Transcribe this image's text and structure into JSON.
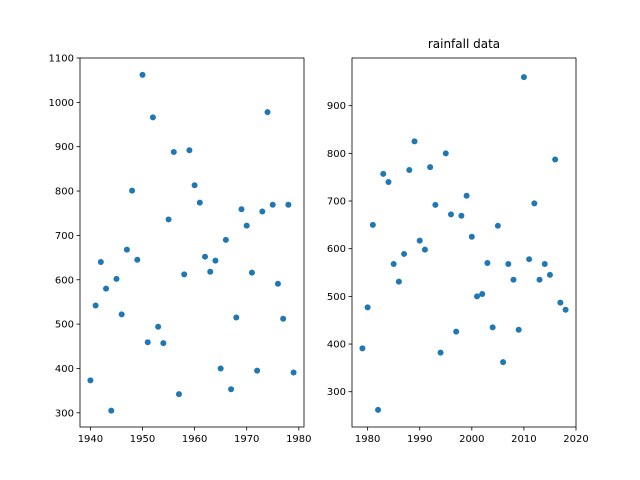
{
  "chart_data": [
    {
      "type": "scatter",
      "title": "",
      "xlabel": "",
      "ylabel": "",
      "xlim": [
        1938,
        1981
      ],
      "ylim": [
        268,
        1100
      ],
      "xticks": [
        1940,
        1950,
        1960,
        1970,
        1980
      ],
      "yticks": [
        300,
        400,
        500,
        600,
        700,
        800,
        900,
        1000,
        1100
      ],
      "grid": false,
      "marker_color": "#1f77b4",
      "x": [
        1940,
        1941,
        1942,
        1943,
        1944,
        1945,
        1946,
        1947,
        1948,
        1949,
        1950,
        1951,
        1952,
        1953,
        1954,
        1955,
        1956,
        1957,
        1958,
        1959,
        1960,
        1961,
        1962,
        1963,
        1964,
        1965,
        1966,
        1967,
        1968,
        1969,
        1970,
        1971,
        1972,
        1973,
        1974,
        1975,
        1976,
        1977,
        1978,
        1979
      ],
      "y": [
        373,
        542,
        640,
        580,
        305,
        602,
        522,
        668,
        801,
        645,
        1062,
        459,
        966,
        494,
        457,
        736,
        888,
        342,
        612,
        892,
        813,
        774,
        652,
        618,
        643,
        400,
        690,
        353,
        515,
        759,
        722,
        616,
        395,
        754,
        978,
        769,
        591,
        512,
        769,
        391
      ]
    },
    {
      "type": "scatter",
      "title": "rainfall data",
      "xlabel": "",
      "ylabel": "",
      "xlim": [
        1977,
        2020
      ],
      "ylim": [
        226,
        1000
      ],
      "xticks": [
        1980,
        1990,
        2000,
        2010,
        2020
      ],
      "yticks": [
        300,
        400,
        500,
        600,
        700,
        800,
        900
      ],
      "grid": false,
      "marker_color": "#1f77b4",
      "x": [
        1979,
        1980,
        1981,
        1982,
        1983,
        1984,
        1985,
        1986,
        1987,
        1988,
        1989,
        1990,
        1991,
        1992,
        1993,
        1994,
        1995,
        1996,
        1997,
        1998,
        1999,
        2000,
        2001,
        2002,
        2003,
        2004,
        2005,
        2006,
        2007,
        2008,
        2009,
        2010,
        2011,
        2012,
        2013,
        2014,
        2015,
        2016,
        2017,
        2018
      ],
      "y": [
        391,
        477,
        650,
        262,
        757,
        740,
        568,
        531,
        589,
        765,
        825,
        617,
        598,
        771,
        692,
        382,
        800,
        672,
        426,
        669,
        711,
        625,
        500,
        505,
        570,
        435,
        648,
        362,
        568,
        535,
        430,
        960,
        578,
        695,
        535,
        568,
        545,
        787,
        487,
        472
      ]
    }
  ]
}
